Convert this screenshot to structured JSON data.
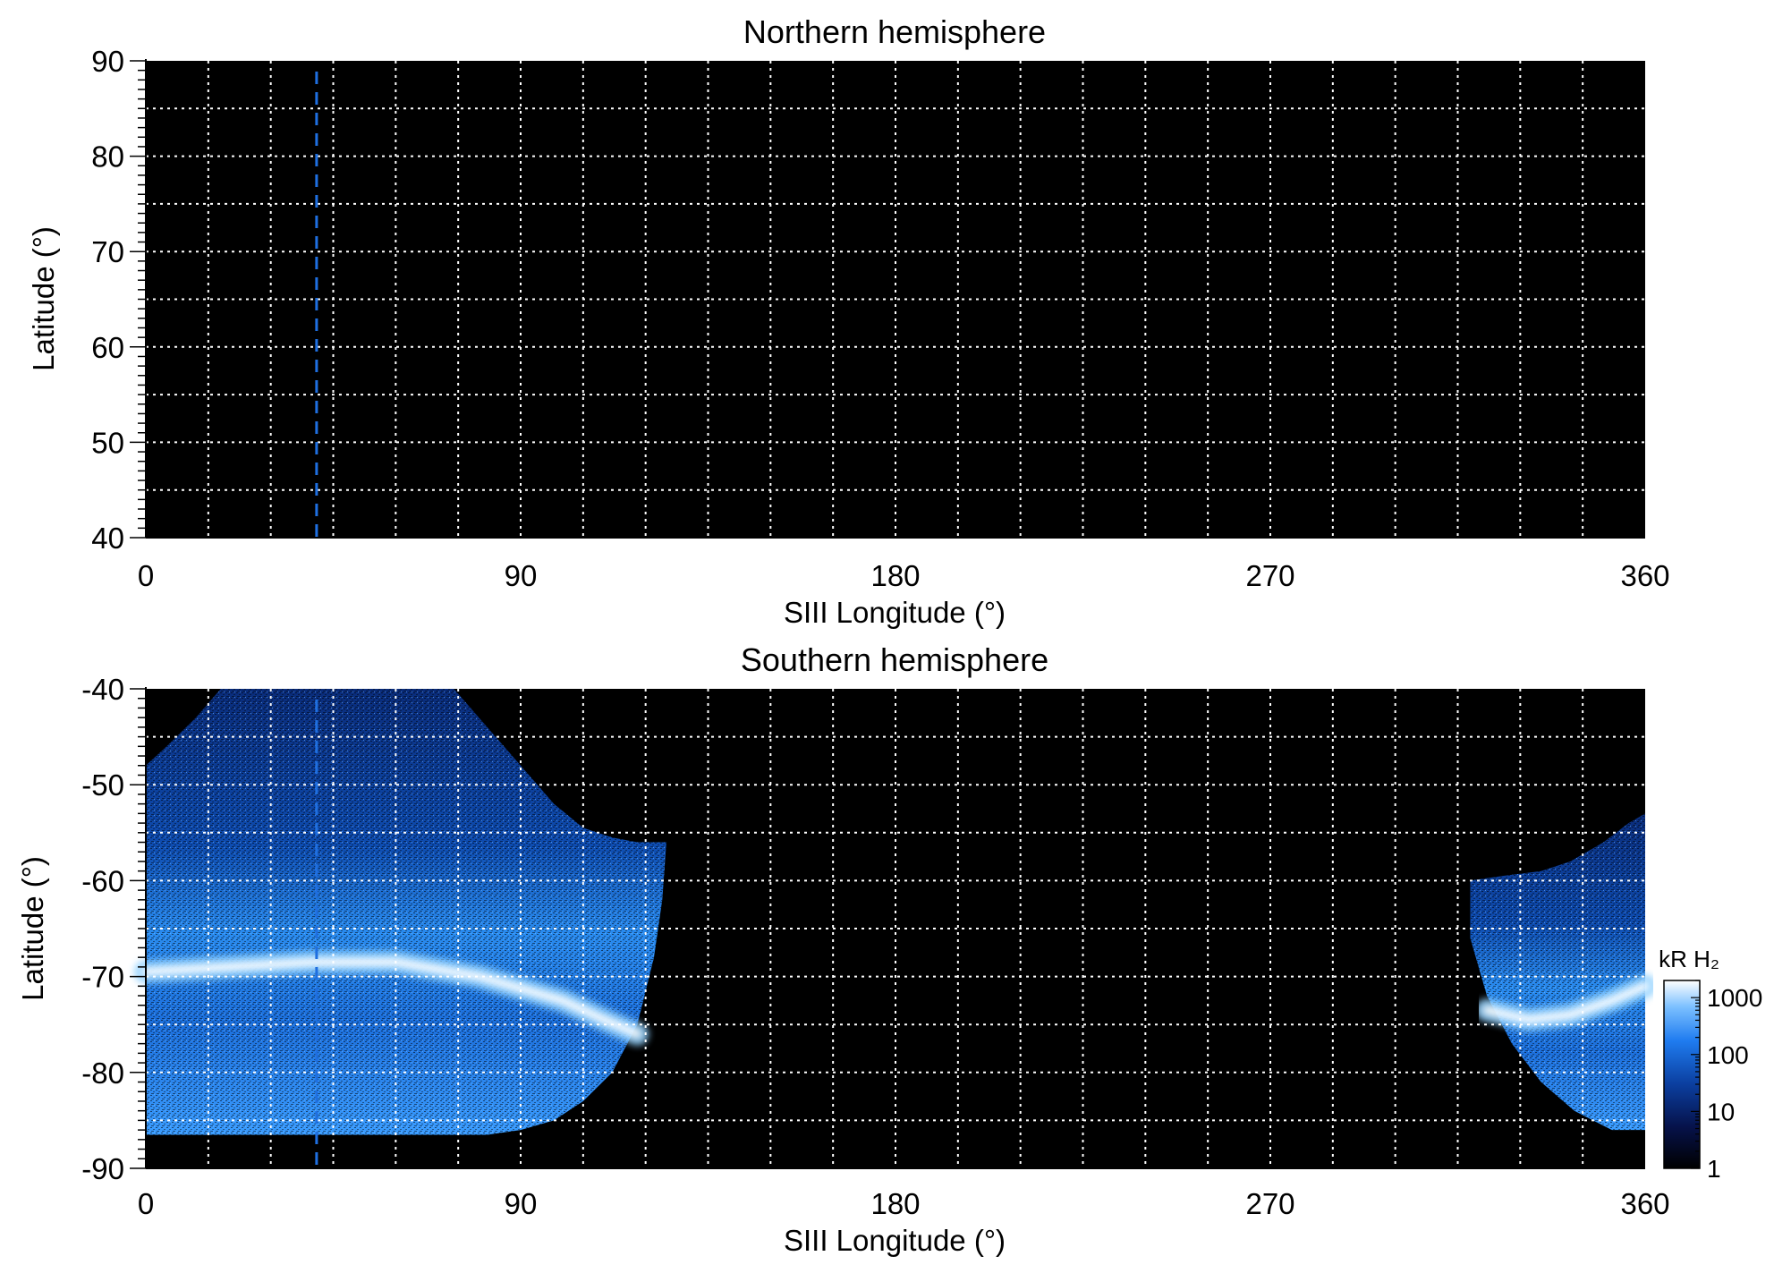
{
  "chart_data": [
    {
      "type": "heatmap",
      "title": "Northern hemisphere",
      "xlabel": "SIII Longitude (°)",
      "ylabel": "Latitude (°)",
      "xlim": [
        0,
        360
      ],
      "ylim": [
        40,
        90
      ],
      "x_ticks": [
        "0",
        "90",
        "180",
        "270",
        "360"
      ],
      "x_tick_values": [
        0,
        90,
        180,
        270,
        360
      ],
      "y_ticks": [
        "40",
        "50",
        "60",
        "70",
        "80",
        "90"
      ],
      "y_tick_values": [
        40,
        50,
        60,
        70,
        80,
        90
      ],
      "x_grid_step": 15,
      "y_grid_step": 5,
      "grid": true,
      "grid_color": "#ffffff",
      "background_color": "#000000",
      "marker_longitude": 41,
      "marker_color": "#1f6fe0",
      "emission_regions": []
    },
    {
      "type": "heatmap",
      "title": "Southern hemisphere",
      "xlabel": "SIII Longitude (°)",
      "ylabel": "Latitude (°)",
      "xlim": [
        0,
        360
      ],
      "ylim": [
        -90,
        -40
      ],
      "x_ticks": [
        "0",
        "90",
        "180",
        "270",
        "360"
      ],
      "x_tick_values": [
        0,
        90,
        180,
        270,
        360
      ],
      "y_ticks": [
        "-40",
        "-50",
        "-60",
        "-70",
        "-80",
        "-90"
      ],
      "y_tick_values": [
        -40,
        -50,
        -60,
        -70,
        -80,
        -90
      ],
      "x_grid_step": 15,
      "y_grid_step": 5,
      "grid": true,
      "grid_color": "#ffffff",
      "background_color": "#000000",
      "marker_longitude": 41,
      "marker_color": "#1f6fe0",
      "emission_regions": [
        {
          "outline": [
            [
              0,
              -86.5
            ],
            [
              0,
              -48
            ],
            [
              5,
              -46
            ],
            [
              12,
              -43
            ],
            [
              18,
              -40
            ],
            [
              74,
              -40
            ],
            [
              80,
              -43
            ],
            [
              90,
              -48
            ],
            [
              98,
              -52
            ],
            [
              105,
              -54.5
            ],
            [
              112,
              -55.5
            ],
            [
              118,
              -56
            ],
            [
              125,
              -56
            ],
            [
              124,
              -62
            ],
            [
              122,
              -68
            ],
            [
              118,
              -75
            ],
            [
              112,
              -80
            ],
            [
              105,
              -83
            ],
            [
              98,
              -85
            ],
            [
              90,
              -86
            ],
            [
              82,
              -86.5
            ]
          ],
          "aurora_band": [
            [
              0,
              -69.5
            ],
            [
              20,
              -69
            ],
            [
              40,
              -68.5
            ],
            [
              60,
              -68.5
            ],
            [
              80,
              -70
            ],
            [
              100,
              -72.5
            ],
            [
              110,
              -74.5
            ],
            [
              118,
              -76
            ]
          ],
          "peak_brightness_kR": 1000
        },
        {
          "outline": [
            [
              318,
              -60
            ],
            [
              326,
              -59.5
            ],
            [
              335,
              -59
            ],
            [
              342,
              -58
            ],
            [
              350,
              -56
            ],
            [
              356,
              -54
            ],
            [
              360,
              -53
            ],
            [
              360,
              -86
            ],
            [
              352,
              -86
            ],
            [
              343,
              -84
            ],
            [
              335,
              -81
            ],
            [
              328,
              -77
            ],
            [
              322,
              -72
            ],
            [
              318,
              -66
            ]
          ],
          "aurora_band": [
            [
              322,
              -73.5
            ],
            [
              332,
              -74.5
            ],
            [
              342,
              -74
            ],
            [
              352,
              -72.5
            ],
            [
              360,
              -71
            ]
          ],
          "peak_brightness_kR": 1000
        }
      ],
      "colorbar": {
        "label": "kR H₂",
        "scale": "log",
        "tick_labels": [
          "1",
          "10",
          "100",
          "1000"
        ],
        "tick_values": [
          1,
          10,
          100,
          1000
        ],
        "range": [
          1,
          2000
        ],
        "colors": [
          "#000000",
          "#06124a",
          "#0b3fa0",
          "#1f7cf0",
          "#7cc0ff",
          "#ffffff"
        ]
      }
    }
  ]
}
